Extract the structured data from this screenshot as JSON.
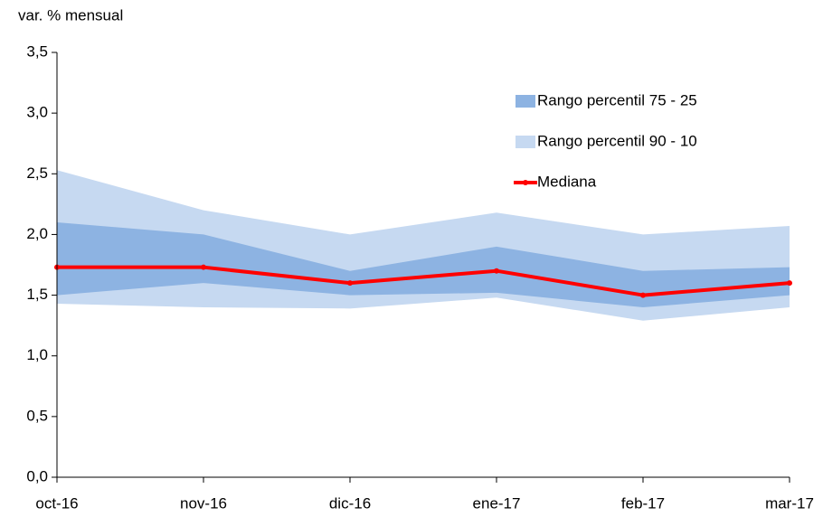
{
  "chart_data": {
    "type": "fan",
    "y_label": "var. % mensual",
    "categories": [
      "oct-16",
      "nov-16",
      "dic-16",
      "ene-17",
      "feb-17",
      "mar-17"
    ],
    "series": [
      {
        "name": "Rango percentil 75 - 25",
        "color": "#8db3e2",
        "upper": [
          2.1,
          2.0,
          1.7,
          1.9,
          1.7,
          1.73
        ],
        "lower": [
          1.5,
          1.6,
          1.5,
          1.52,
          1.4,
          1.5
        ]
      },
      {
        "name": "Rango percentil 90 - 10",
        "color": "#c6d9f1",
        "upper": [
          2.53,
          2.2,
          2.0,
          2.18,
          2.0,
          2.07
        ],
        "lower": [
          1.43,
          1.4,
          1.39,
          1.48,
          1.29,
          1.4
        ]
      },
      {
        "name": "Mediana",
        "color": "#ff0000",
        "values": [
          1.73,
          1.73,
          1.6,
          1.7,
          1.5,
          1.6
        ]
      }
    ],
    "ylim": [
      0,
      3.5
    ],
    "yticks": [
      {
        "value": 0,
        "label": "0,0"
      },
      {
        "value": 0.5,
        "label": "0,5"
      },
      {
        "value": 1,
        "label": "1,0"
      },
      {
        "value": 1.5,
        "label": "1,5"
      },
      {
        "value": 2,
        "label": "2,0"
      },
      {
        "value": 2.5,
        "label": "2,5"
      },
      {
        "value": 3,
        "label": "3,0"
      },
      {
        "value": 3.5,
        "label": "3,5"
      }
    ]
  }
}
